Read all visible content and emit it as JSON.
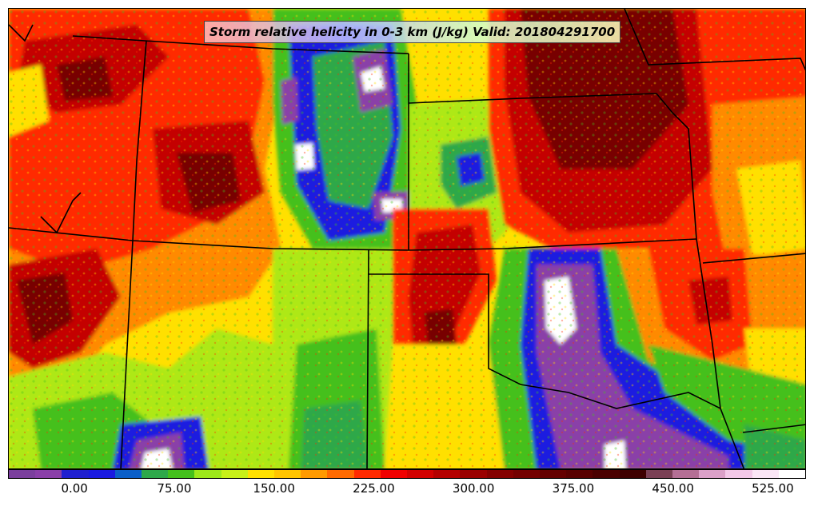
{
  "title": "Storm relative helicity in 0-3 km (J/kg) Valid: 201804291700",
  "colorbar": {
    "colors": [
      "#7b3f9d",
      "#8a3fa8",
      "#2020d0",
      "#1a1ae0",
      "#0b5fc8",
      "#2ea84a",
      "#44c01c",
      "#9de81a",
      "#c8f018",
      "#ffe000",
      "#ffc400",
      "#ff9a00",
      "#ff6a00",
      "#ff2a00",
      "#f00000",
      "#d20000",
      "#b40000",
      "#9a0000",
      "#840000",
      "#740000",
      "#640000",
      "#580000",
      "#4a0000",
      "#3e0000",
      "#7a4055",
      "#b46f95",
      "#dba0c8",
      "#f3c8e8",
      "#fbe6f6",
      "#ffffff"
    ],
    "tick_labels": [
      "0.00",
      "75.00",
      "150.00",
      "225.00",
      "300.00",
      "375.00",
      "450.00",
      "525.00"
    ],
    "tick_values": [
      0,
      75,
      150,
      225,
      300,
      375,
      450,
      525
    ],
    "range": [
      -50,
      550
    ]
  },
  "field_palette": {
    "purple": "#8a3fa8",
    "blue": "#1a1ae0",
    "darkgreen": "#2ea84a",
    "green": "#44c01c",
    "lime": "#aee818",
    "yellow": "#ffe000",
    "orange": "#ff8a00",
    "red": "#ff2a00",
    "darkred": "#c40000",
    "maroon": "#780000",
    "white": "#ffffff"
  }
}
